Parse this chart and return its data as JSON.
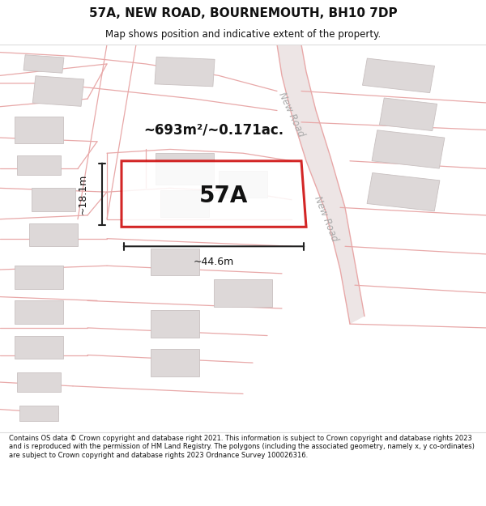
{
  "title": "57A, NEW ROAD, BOURNEMOUTH, BH10 7DP",
  "subtitle": "Map shows position and indicative extent of the property.",
  "footer": "Contains OS data © Crown copyright and database right 2021. This information is subject to Crown copyright and database rights 2023 and is reproduced with the permission of HM Land Registry. The polygons (including the associated geometry, namely x, y co-ordinates) are subject to Crown copyright and database rights 2023 Ordnance Survey 100026316.",
  "area_label": "~693m²/~0.171ac.",
  "property_label": "57A",
  "width_label": "~44.6m",
  "height_label": "~18.1m",
  "road_label": "New Road",
  "map_bg": "#f9f6f6",
  "road_color": "#e8a8a8",
  "road_fill": "#f0e8e8",
  "building_color": "#ddd8d8",
  "building_edge": "#c8c0c0",
  "property_outline_color": "#cc0000",
  "dim_line_color": "#222222",
  "title_color": "#111111",
  "footer_color": "#111111",
  "new_road_color": "#e0d0d0",
  "new_road_label_color": "#aaaaaa"
}
